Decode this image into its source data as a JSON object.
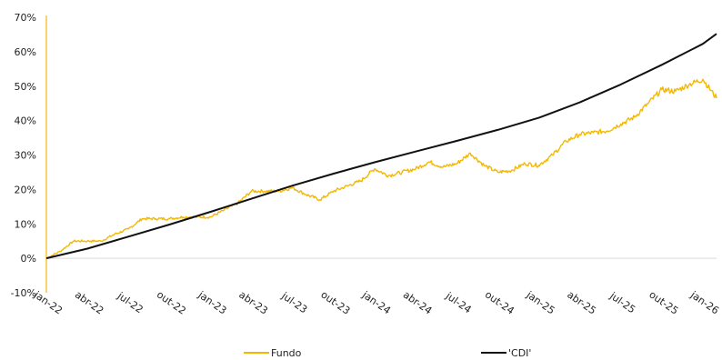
{
  "chart_data": {
    "type": "line",
    "title": "",
    "xlabel": "",
    "ylabel": "",
    "x_tick_labels": [
      "jan-22",
      "abr-22",
      "jul-22",
      "out-22",
      "jan-23",
      "abr-23",
      "jul-23",
      "out-23",
      "jan-24",
      "abr-24",
      "jul-24",
      "out-24",
      "jan-25",
      "abr-25",
      "jul-25",
      "out-25",
      "jan-26"
    ],
    "y_tick_labels": [
      "-10%",
      "0%",
      "10%",
      "20%",
      "30%",
      "40%",
      "50%",
      "60%",
      "70%"
    ],
    "ylim": [
      -10,
      70
    ],
    "grid": false,
    "zero_line": true,
    "legend_position": "bottom",
    "colors": {
      "Fundo": "#F5B800",
      "CDI": "#111111",
      "zero_line": "#D9D9D9",
      "y_axis": "#F5B800"
    },
    "series": [
      {
        "name": "Fundo",
        "legend_label": "Fundo",
        "months": [
          "jan-22",
          "fev-22",
          "mar-22",
          "abr-22",
          "mai-22",
          "jun-22",
          "jul-22",
          "ago-22",
          "set-22",
          "out-22",
          "nov-22",
          "dez-22",
          "jan-23",
          "fev-23",
          "mar-23",
          "abr-23",
          "mai-23",
          "jun-23",
          "jul-23",
          "ago-23",
          "set-23",
          "out-23",
          "nov-23",
          "dez-23",
          "jan-24",
          "fev-24",
          "mar-24",
          "abr-24",
          "mai-24",
          "jun-24",
          "jul-24",
          "ago-24",
          "set-24",
          "out-24",
          "nov-24",
          "dez-24",
          "jan-25",
          "fev-25",
          "mar-25",
          "abr-25",
          "mai-25",
          "jun-25",
          "jul-25",
          "ago-25",
          "set-25",
          "out-25",
          "nov-25",
          "dez-25",
          "jan-26",
          "fev-26"
        ],
        "values": [
          0,
          2,
          5,
          5,
          5,
          7,
          8.5,
          11.5,
          11.5,
          11.5,
          12,
          12,
          12,
          14,
          16,
          19.5,
          19.5,
          19.5,
          20.5,
          18.5,
          17,
          19.5,
          21,
          22.5,
          26,
          24,
          25,
          26,
          28,
          26.5,
          27.5,
          30.5,
          27,
          25,
          25.5,
          27.5,
          27,
          30,
          34,
          36,
          36.5,
          37,
          39,
          41,
          45,
          49,
          48.5,
          50.5,
          52,
          46.5
        ]
      },
      {
        "name": "CDI",
        "legend_label": "'CDI'",
        "months": [
          "jan-22",
          "abr-22",
          "jul-22",
          "out-22",
          "jan-23",
          "abr-23",
          "jul-23",
          "out-23",
          "jan-24",
          "abr-24",
          "jul-24",
          "out-24",
          "jan-25",
          "abr-25",
          "jul-25",
          "out-25",
          "jan-26",
          "fev-26"
        ],
        "values": [
          0,
          2.8,
          6.3,
          9.8,
          13.5,
          17.3,
          21.1,
          24.6,
          27.9,
          31.0,
          34.1,
          37.3,
          40.8,
          45.3,
          50.5,
          56.2,
          62.3,
          65.2
        ]
      }
    ]
  }
}
